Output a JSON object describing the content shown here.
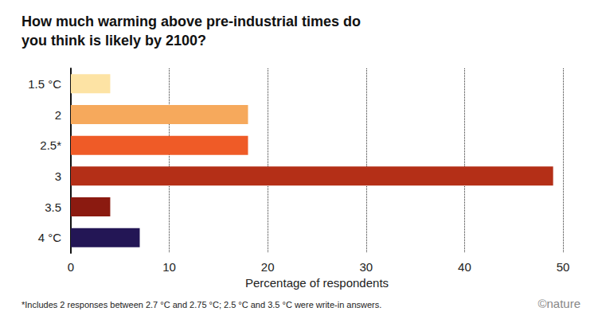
{
  "chart_data": {
    "type": "bar",
    "orientation": "horizontal",
    "title": "How much warming above pre-industrial times do you think is likely by 2100?",
    "categories": [
      "1.5 °C",
      "2",
      "2.5*",
      "3",
      "3.5",
      "4 °C"
    ],
    "values": [
      4,
      18,
      18,
      49,
      4,
      7
    ],
    "colors": [
      "#fde3a4",
      "#f6a95c",
      "#ef5b27",
      "#b42f17",
      "#8b1a10",
      "#231655"
    ],
    "x_label": "Percentage of respondents",
    "xlim": [
      0,
      50
    ],
    "xticks": [
      0,
      10,
      20,
      30,
      40,
      50
    ],
    "grid": true,
    "footnote": "*Includes 2 responses between 2.7 °C and 2.75 °C; 2.5 °C and 3.5 °C were write-in answers.",
    "credit": "©nature"
  }
}
